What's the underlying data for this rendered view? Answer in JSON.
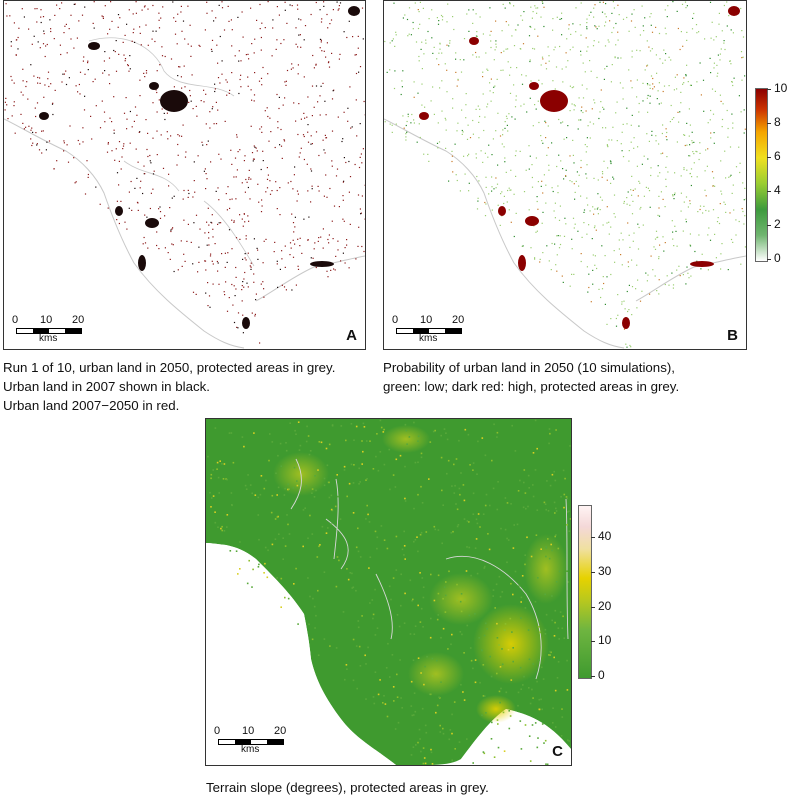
{
  "panels": {
    "a": {
      "letter": "A",
      "caption_lines": [
        "Run 1 of 10, urban land in 2050, protected areas in grey.",
        "Urban land in 2007 shown in black.",
        "Urban land 2007−2050 in red."
      ],
      "scalebar": {
        "labels": [
          "0",
          "10",
          "20"
        ],
        "unit": "kms"
      }
    },
    "b": {
      "letter": "B",
      "caption_lines": [
        "Probability of urban land in 2050 (10 simulations),",
        "green: low; dark red: high, protected areas in grey."
      ],
      "scalebar": {
        "labels": [
          "0",
          "10",
          "20"
        ],
        "unit": "kms"
      },
      "legend": {
        "ticks": [
          "10",
          "8",
          "6",
          "4",
          "2",
          "0"
        ]
      }
    },
    "c": {
      "letter": "C",
      "caption_lines": [
        "Terrain slope (degrees), protected areas in grey."
      ],
      "scalebar": {
        "labels": [
          "0",
          "10",
          "20"
        ],
        "unit": "kms"
      },
      "legend": {
        "ticks": [
          "40",
          "30",
          "20",
          "10",
          "0"
        ]
      }
    }
  },
  "colors": {
    "urban_2007": "#1a0a0a",
    "urban_new": "#8b1a1a",
    "protected": "#c8c8c8",
    "prob_low": "#2e8b2e",
    "prob_high": "#8b0000",
    "slope_low": "#3f9a2f",
    "slope_mid": "#e6d200",
    "slope_high": "#f7e6e6"
  }
}
